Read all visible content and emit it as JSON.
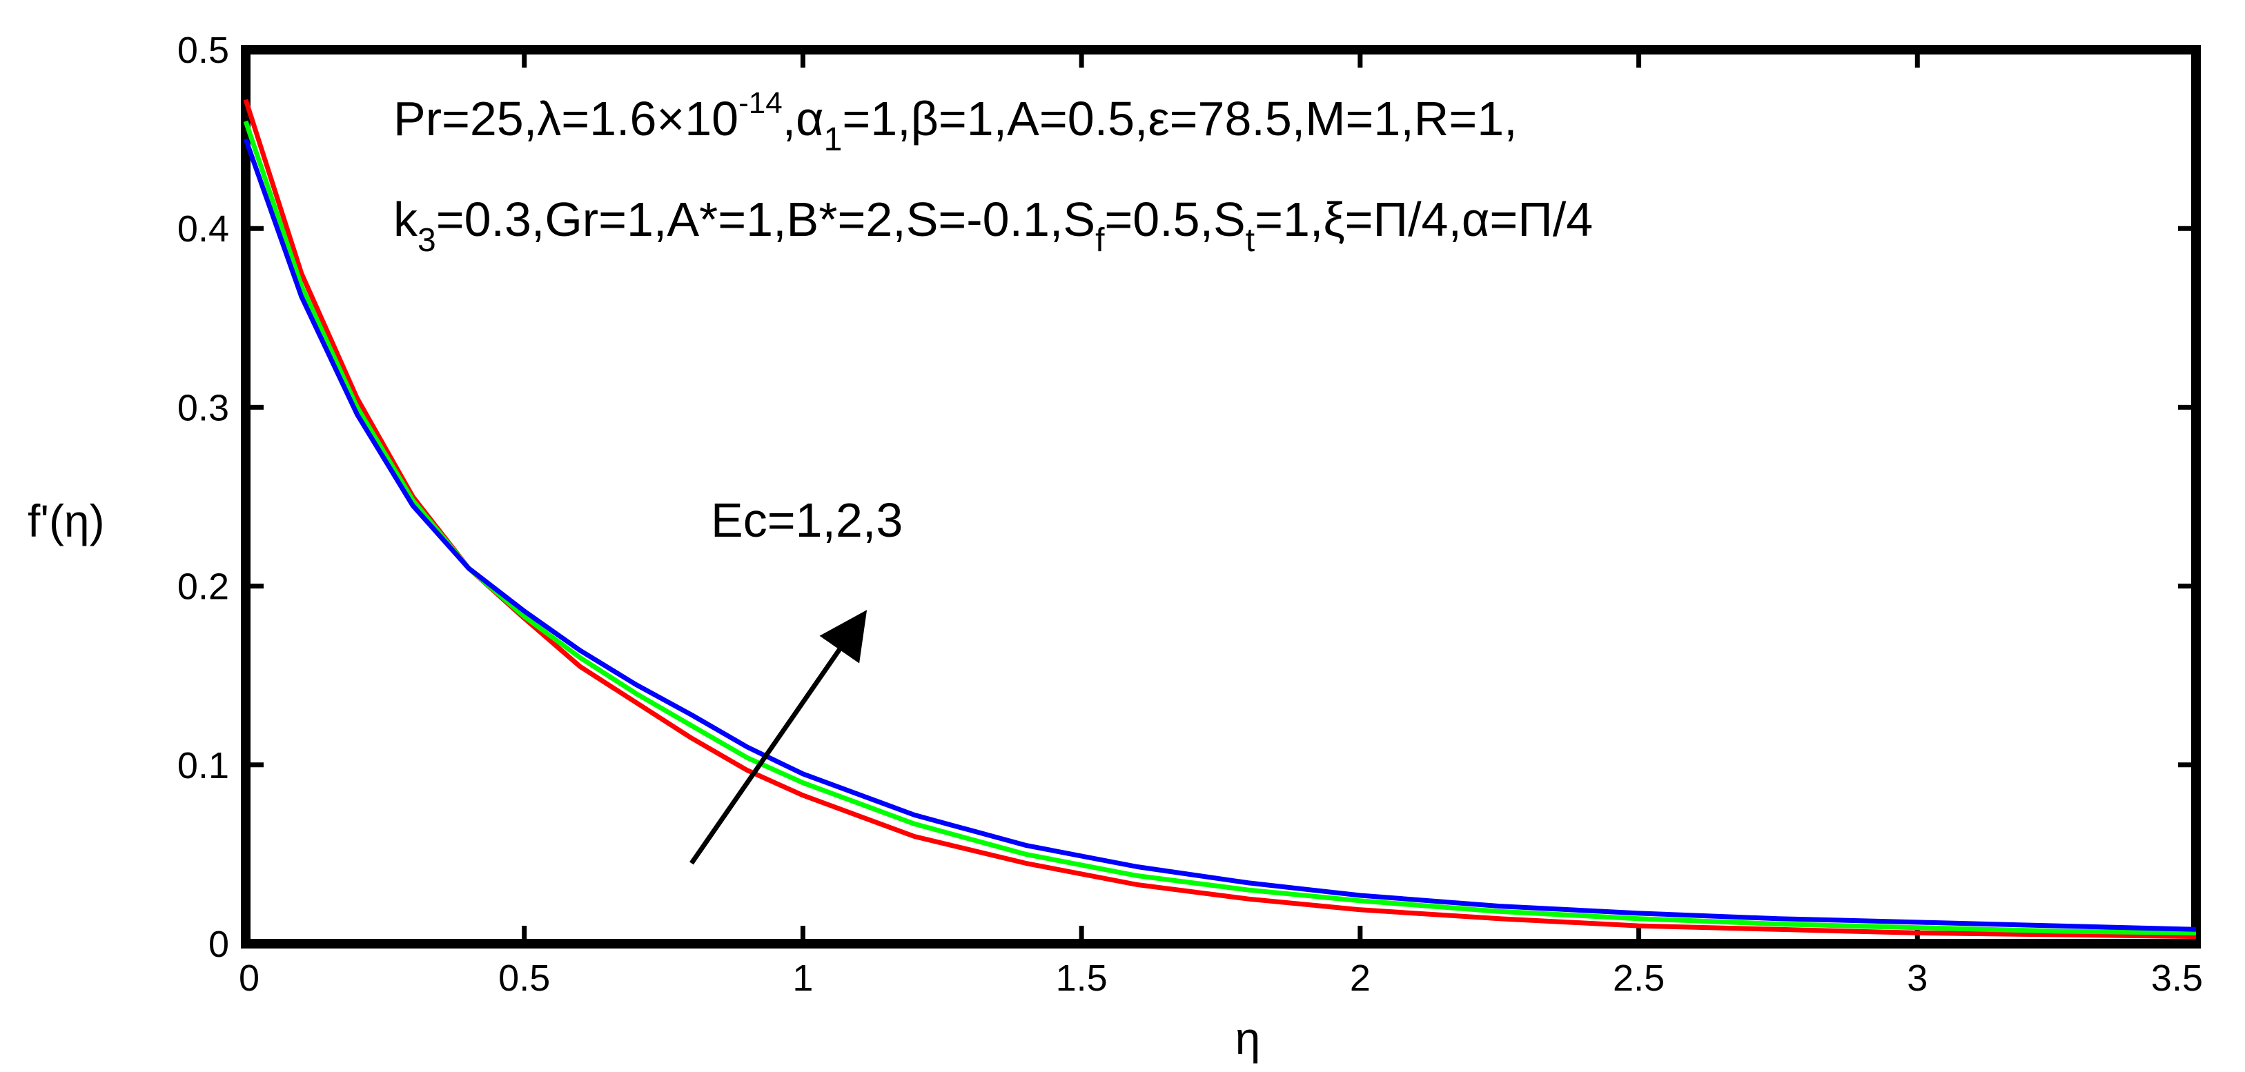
{
  "chart_data": {
    "type": "line",
    "xlabel": "η",
    "ylabel": "f'(η)",
    "xlim": [
      0,
      3.5
    ],
    "ylim": [
      0,
      0.5
    ],
    "xticks": [
      0,
      0.5,
      1,
      1.5,
      2,
      2.5,
      3,
      3.5
    ],
    "yticks": [
      0,
      0.1,
      0.2,
      0.3,
      0.4,
      0.5
    ],
    "xtick_labels": [
      "0",
      "0.5",
      "1",
      "1.5",
      "2",
      "2.5",
      "3",
      "3.5"
    ],
    "ytick_labels": [
      "0",
      "0.1",
      "0.2",
      "0.3",
      "0.4",
      "0.5"
    ],
    "grid": false,
    "series": [
      {
        "color": "#ff0000",
        "x": [
          0,
          0.1,
          0.2,
          0.3,
          0.4,
          0.5,
          0.6,
          0.7,
          0.8,
          0.9,
          1.0,
          1.2,
          1.4,
          1.6,
          1.8,
          2.0,
          2.25,
          2.5,
          2.75,
          3.0,
          3.25,
          3.5
        ],
        "y": [
          0.472,
          0.375,
          0.305,
          0.25,
          0.21,
          0.182,
          0.155,
          0.135,
          0.115,
          0.097,
          0.083,
          0.06,
          0.045,
          0.033,
          0.025,
          0.019,
          0.014,
          0.01,
          0.008,
          0.006,
          0.005,
          0.004
        ]
      },
      {
        "color": "#00ff00",
        "x": [
          0,
          0.1,
          0.2,
          0.3,
          0.4,
          0.5,
          0.6,
          0.7,
          0.8,
          0.9,
          1.0,
          1.2,
          1.4,
          1.6,
          1.8,
          2.0,
          2.25,
          2.5,
          2.75,
          3.0,
          3.25,
          3.5
        ],
        "y": [
          0.46,
          0.368,
          0.3,
          0.248,
          0.21,
          0.183,
          0.16,
          0.14,
          0.122,
          0.104,
          0.09,
          0.067,
          0.05,
          0.038,
          0.03,
          0.024,
          0.018,
          0.014,
          0.011,
          0.009,
          0.007,
          0.006
        ]
      },
      {
        "color": "#0000ff",
        "x": [
          0,
          0.1,
          0.2,
          0.3,
          0.4,
          0.5,
          0.6,
          0.7,
          0.8,
          0.9,
          1.0,
          1.2,
          1.4,
          1.6,
          1.8,
          2.0,
          2.25,
          2.5,
          2.75,
          3.0,
          3.25,
          3.5
        ],
        "y": [
          0.45,
          0.362,
          0.296,
          0.245,
          0.21,
          0.186,
          0.164,
          0.145,
          0.128,
          0.11,
          0.095,
          0.072,
          0.055,
          0.043,
          0.034,
          0.027,
          0.021,
          0.017,
          0.014,
          0.012,
          0.01,
          0.008
        ]
      }
    ],
    "annotations": {
      "params_line1": {
        "p1": "Pr=25,λ=1.6×10",
        "p1_sup": "-14",
        "p2": ",α",
        "p2_sub": "1",
        "p3": "=1,β=1,A=0.5,ε=78.5,M=1,R=1,"
      },
      "params_line2": {
        "p1": "k",
        "p1_sub": "3",
        "p2": "=0.3,Gr=1,A*=1,B*=2,S=-0.1,S",
        "p2_sub": "f",
        "p3": "=0.5,S",
        "p3_sub": "t",
        "p4": "=1,ξ=Π/4,α=Π/4"
      },
      "arrow_label": "Ec=1,2,3",
      "arrow": {
        "from": [
          0.8,
          0.045
        ],
        "to": [
          1.1,
          0.18
        ],
        "color": "#000000"
      }
    }
  }
}
